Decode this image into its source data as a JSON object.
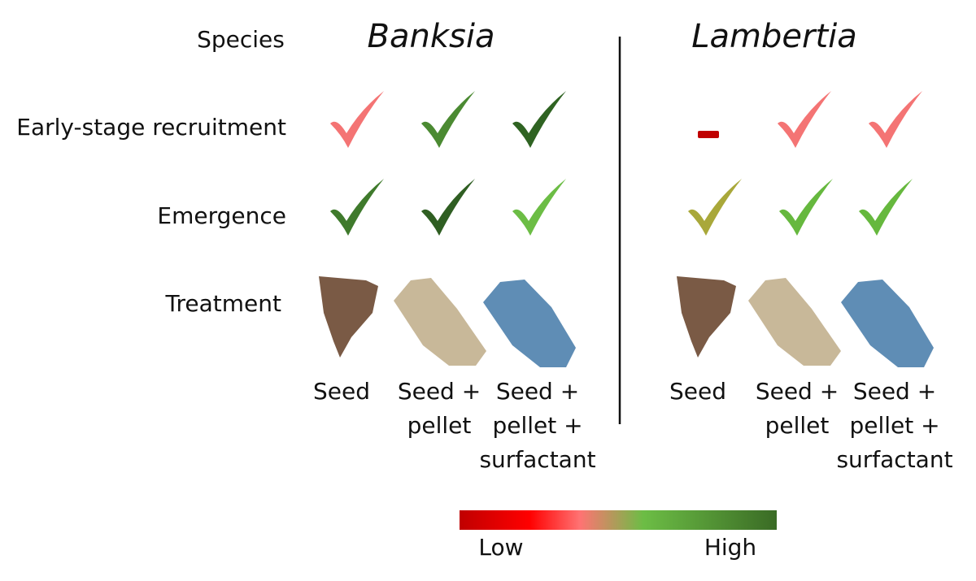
{
  "row_labels": {
    "species": "Species",
    "early": "Early-stage recruitment",
    "emergence": "Emergence",
    "treatment": "Treatment"
  },
  "groups": [
    {
      "name": "Banksia",
      "treatments": [
        [
          "Seed"
        ],
        [
          "Seed +",
          "pellet"
        ],
        [
          "Seed +",
          "pellet +",
          "surfactant"
        ]
      ]
    },
    {
      "name": "Lambertia",
      "treatments": [
        [
          "Seed"
        ],
        [
          "Seed +",
          "pellet"
        ],
        [
          "Seed +",
          "pellet +",
          "surfactant"
        ]
      ]
    }
  ],
  "legend": {
    "low": "Low",
    "high": "High"
  }
}
